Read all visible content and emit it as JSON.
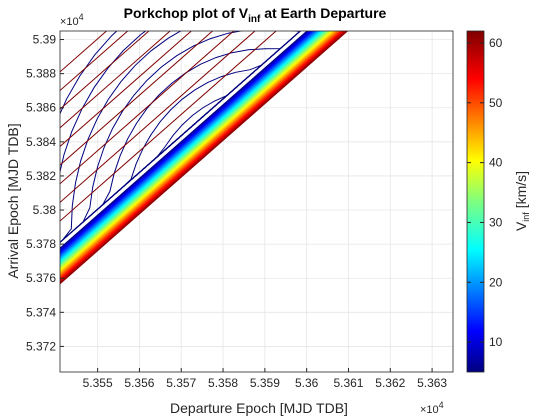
{
  "chart_data": {
    "type": "contour",
    "title_main": "Porkchop plot of V",
    "title_sub": "inf",
    "title_tail": " at Earth Departure",
    "xlabel": "Departure Epoch [MJD TDB]",
    "ylabel": "Arrival Epoch [MJD TDB]",
    "x_multiplier": "×10",
    "y_multiplier": "×10",
    "exponent": "4",
    "xlim": [
      5.3541,
      5.3635
    ],
    "ylim": [
      5.3705,
      5.3905
    ],
    "x_ticks": [
      5.355,
      5.356,
      5.357,
      5.358,
      5.359,
      5.36,
      5.361,
      5.362,
      5.363
    ],
    "x_tick_labels": [
      "5.355",
      "5.356",
      "5.357",
      "5.358",
      "5.359",
      "5.36",
      "5.361",
      "5.362",
      "5.363"
    ],
    "y_ticks": [
      5.372,
      5.374,
      5.376,
      5.378,
      5.38,
      5.382,
      5.384,
      5.386,
      5.388,
      5.39
    ],
    "y_tick_labels": [
      "5.372",
      "5.374",
      "5.376",
      "5.378",
      "5.38",
      "5.382",
      "5.384",
      "5.386",
      "5.388",
      "5.39"
    ],
    "grid": true,
    "minimum_region": {
      "x": 5.359,
      "y": 5.3789
    },
    "colorbar": {
      "label_main": "V",
      "label_sub": "inf",
      "label_tail": " [km/s]",
      "range": [
        5,
        62
      ],
      "ticks": [
        10,
        20,
        30,
        40,
        50,
        60
      ],
      "tick_labels": [
        "10",
        "20",
        "30",
        "40",
        "50",
        "60"
      ],
      "colormap": "jet"
    },
    "colors": {
      "low": "#00007f",
      "high": "#7f0000",
      "grid": "#e6e6e6",
      "axis": "#262626"
    }
  }
}
